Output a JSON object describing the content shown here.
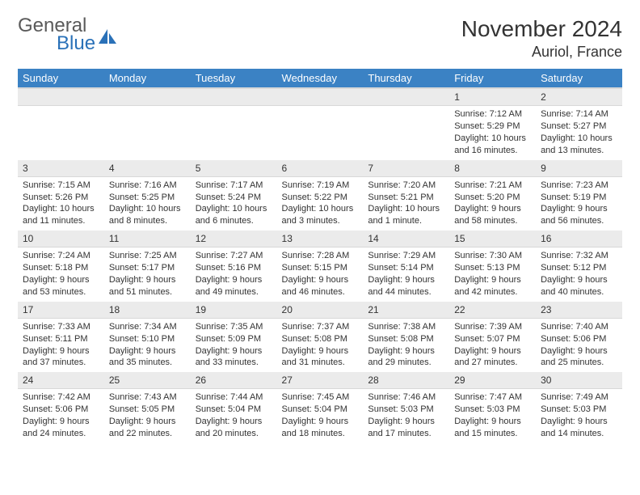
{
  "logo": {
    "word1": "General",
    "word2": "Blue",
    "icon_color": "#2a71b8"
  },
  "title": "November 2024",
  "location": "Auriol, France",
  "header_bg": "#3b82c4",
  "header_fg": "#ffffff",
  "daynum_bg": "#ebebeb",
  "days": [
    "Sunday",
    "Monday",
    "Tuesday",
    "Wednesday",
    "Thursday",
    "Friday",
    "Saturday"
  ],
  "weeks": [
    [
      {
        "n": "",
        "lines": []
      },
      {
        "n": "",
        "lines": []
      },
      {
        "n": "",
        "lines": []
      },
      {
        "n": "",
        "lines": []
      },
      {
        "n": "",
        "lines": []
      },
      {
        "n": "1",
        "lines": [
          "Sunrise: 7:12 AM",
          "Sunset: 5:29 PM",
          "Daylight: 10 hours and 16 minutes."
        ]
      },
      {
        "n": "2",
        "lines": [
          "Sunrise: 7:14 AM",
          "Sunset: 5:27 PM",
          "Daylight: 10 hours and 13 minutes."
        ]
      }
    ],
    [
      {
        "n": "3",
        "lines": [
          "Sunrise: 7:15 AM",
          "Sunset: 5:26 PM",
          "Daylight: 10 hours and 11 minutes."
        ]
      },
      {
        "n": "4",
        "lines": [
          "Sunrise: 7:16 AM",
          "Sunset: 5:25 PM",
          "Daylight: 10 hours and 8 minutes."
        ]
      },
      {
        "n": "5",
        "lines": [
          "Sunrise: 7:17 AM",
          "Sunset: 5:24 PM",
          "Daylight: 10 hours and 6 minutes."
        ]
      },
      {
        "n": "6",
        "lines": [
          "Sunrise: 7:19 AM",
          "Sunset: 5:22 PM",
          "Daylight: 10 hours and 3 minutes."
        ]
      },
      {
        "n": "7",
        "lines": [
          "Sunrise: 7:20 AM",
          "Sunset: 5:21 PM",
          "Daylight: 10 hours and 1 minute."
        ]
      },
      {
        "n": "8",
        "lines": [
          "Sunrise: 7:21 AM",
          "Sunset: 5:20 PM",
          "Daylight: 9 hours and 58 minutes."
        ]
      },
      {
        "n": "9",
        "lines": [
          "Sunrise: 7:23 AM",
          "Sunset: 5:19 PM",
          "Daylight: 9 hours and 56 minutes."
        ]
      }
    ],
    [
      {
        "n": "10",
        "lines": [
          "Sunrise: 7:24 AM",
          "Sunset: 5:18 PM",
          "Daylight: 9 hours and 53 minutes."
        ]
      },
      {
        "n": "11",
        "lines": [
          "Sunrise: 7:25 AM",
          "Sunset: 5:17 PM",
          "Daylight: 9 hours and 51 minutes."
        ]
      },
      {
        "n": "12",
        "lines": [
          "Sunrise: 7:27 AM",
          "Sunset: 5:16 PM",
          "Daylight: 9 hours and 49 minutes."
        ]
      },
      {
        "n": "13",
        "lines": [
          "Sunrise: 7:28 AM",
          "Sunset: 5:15 PM",
          "Daylight: 9 hours and 46 minutes."
        ]
      },
      {
        "n": "14",
        "lines": [
          "Sunrise: 7:29 AM",
          "Sunset: 5:14 PM",
          "Daylight: 9 hours and 44 minutes."
        ]
      },
      {
        "n": "15",
        "lines": [
          "Sunrise: 7:30 AM",
          "Sunset: 5:13 PM",
          "Daylight: 9 hours and 42 minutes."
        ]
      },
      {
        "n": "16",
        "lines": [
          "Sunrise: 7:32 AM",
          "Sunset: 5:12 PM",
          "Daylight: 9 hours and 40 minutes."
        ]
      }
    ],
    [
      {
        "n": "17",
        "lines": [
          "Sunrise: 7:33 AM",
          "Sunset: 5:11 PM",
          "Daylight: 9 hours and 37 minutes."
        ]
      },
      {
        "n": "18",
        "lines": [
          "Sunrise: 7:34 AM",
          "Sunset: 5:10 PM",
          "Daylight: 9 hours and 35 minutes."
        ]
      },
      {
        "n": "19",
        "lines": [
          "Sunrise: 7:35 AM",
          "Sunset: 5:09 PM",
          "Daylight: 9 hours and 33 minutes."
        ]
      },
      {
        "n": "20",
        "lines": [
          "Sunrise: 7:37 AM",
          "Sunset: 5:08 PM",
          "Daylight: 9 hours and 31 minutes."
        ]
      },
      {
        "n": "21",
        "lines": [
          "Sunrise: 7:38 AM",
          "Sunset: 5:08 PM",
          "Daylight: 9 hours and 29 minutes."
        ]
      },
      {
        "n": "22",
        "lines": [
          "Sunrise: 7:39 AM",
          "Sunset: 5:07 PM",
          "Daylight: 9 hours and 27 minutes."
        ]
      },
      {
        "n": "23",
        "lines": [
          "Sunrise: 7:40 AM",
          "Sunset: 5:06 PM",
          "Daylight: 9 hours and 25 minutes."
        ]
      }
    ],
    [
      {
        "n": "24",
        "lines": [
          "Sunrise: 7:42 AM",
          "Sunset: 5:06 PM",
          "Daylight: 9 hours and 24 minutes."
        ]
      },
      {
        "n": "25",
        "lines": [
          "Sunrise: 7:43 AM",
          "Sunset: 5:05 PM",
          "Daylight: 9 hours and 22 minutes."
        ]
      },
      {
        "n": "26",
        "lines": [
          "Sunrise: 7:44 AM",
          "Sunset: 5:04 PM",
          "Daylight: 9 hours and 20 minutes."
        ]
      },
      {
        "n": "27",
        "lines": [
          "Sunrise: 7:45 AM",
          "Sunset: 5:04 PM",
          "Daylight: 9 hours and 18 minutes."
        ]
      },
      {
        "n": "28",
        "lines": [
          "Sunrise: 7:46 AM",
          "Sunset: 5:03 PM",
          "Daylight: 9 hours and 17 minutes."
        ]
      },
      {
        "n": "29",
        "lines": [
          "Sunrise: 7:47 AM",
          "Sunset: 5:03 PM",
          "Daylight: 9 hours and 15 minutes."
        ]
      },
      {
        "n": "30",
        "lines": [
          "Sunrise: 7:49 AM",
          "Sunset: 5:03 PM",
          "Daylight: 9 hours and 14 minutes."
        ]
      }
    ]
  ]
}
